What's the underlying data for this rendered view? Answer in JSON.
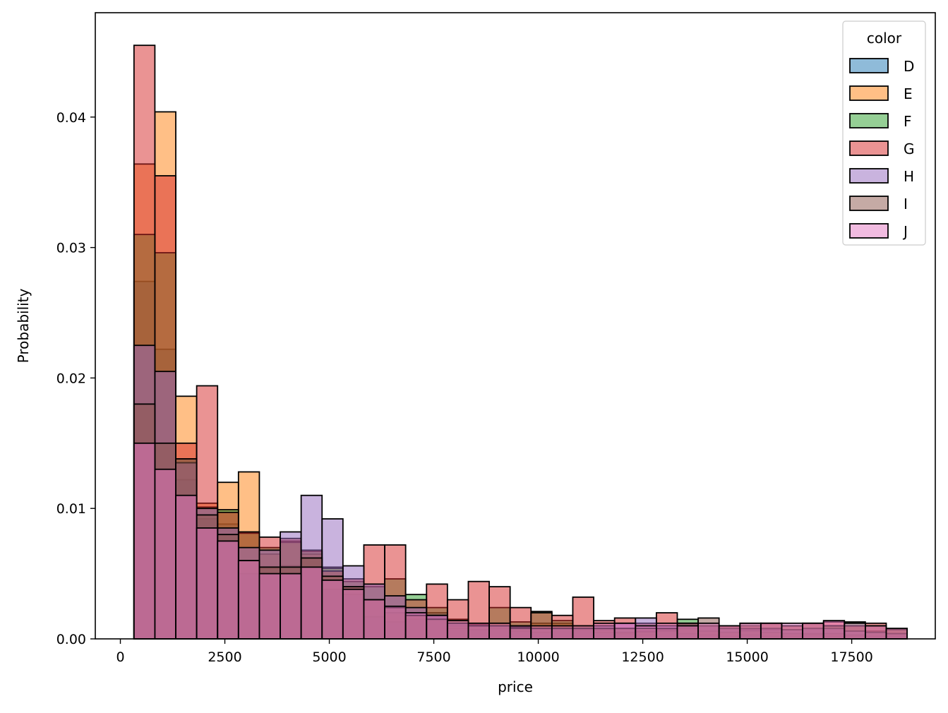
{
  "chart_data": {
    "type": "bar",
    "subtype": "histogram",
    "title": "",
    "xlabel": "price",
    "ylabel": "Probability",
    "xlim": [
      -600,
      19500
    ],
    "ylim": [
      0,
      0.048
    ],
    "xticks": [
      0,
      2500,
      5000,
      7500,
      10000,
      12500,
      15000,
      17500
    ],
    "xtick_labels": [
      "0",
      "2500",
      "5000",
      "7500",
      "10000",
      "12500",
      "15000",
      "17500"
    ],
    "yticks": [
      0,
      0.01,
      0.02,
      0.03,
      0.04
    ],
    "ytick_labels": [
      "0.00",
      "0.01",
      "0.02",
      "0.03",
      "0.04"
    ],
    "bin_start": 326,
    "bin_width": 500,
    "grid": false,
    "legend": {
      "title": "color",
      "placement": "top-right"
    },
    "series": [
      {
        "name": "D",
        "color": "#1f77b4",
        "values": [
          0.0274,
          0.0222,
          0.0122,
          0.0092,
          0.0088,
          0.005,
          0.0054,
          0.0056,
          0.0062,
          0.0038,
          0.0034,
          0.0017,
          0.0013,
          0.0015,
          0.002,
          0.0008,
          0.0007,
          0.0008,
          0.0006,
          0.0005,
          0.001,
          0.0007,
          0.0005,
          0.0004,
          0.0003,
          0.0006,
          0.0004,
          0.0003,
          0.0002,
          0.0003,
          0.0002,
          0.0002,
          0.0003,
          0.0002,
          0.0002,
          0.0002,
          0.0002
        ]
      },
      {
        "name": "E",
        "color": "#ff7f0e",
        "values": [
          0.0364,
          0.0404,
          0.0186,
          0.0104,
          0.012,
          0.0128,
          0.0065,
          0.0075,
          0.0065,
          0.0055,
          0.004,
          0.003,
          0.002,
          0.0018,
          0.0016,
          0.001,
          0.001,
          0.0012,
          0.001,
          0.0012,
          0.0012,
          0.0008,
          0.0007,
          0.0005,
          0.0005,
          0.0006,
          0.0008,
          0.0006,
          0.0005,
          0.0006,
          0.0005,
          0.0004,
          0.0004,
          0.0004,
          0.0003,
          0.0005,
          0.0004
        ]
      },
      {
        "name": "F",
        "color": "#2ca02c",
        "values": [
          0.031,
          0.0296,
          0.0138,
          0.0101,
          0.0099,
          0.0081,
          0.007,
          0.0074,
          0.0067,
          0.0054,
          0.0044,
          0.004,
          0.0046,
          0.0034,
          0.0024,
          0.0015,
          0.0011,
          0.0024,
          0.0013,
          0.0021,
          0.0014,
          0.001,
          0.001,
          0.0008,
          0.0006,
          0.0007,
          0.0015,
          0.001,
          0.0008,
          0.0007,
          0.0007,
          0.0007,
          0.0008,
          0.001,
          0.0013,
          0.0006,
          0.0007
        ]
      },
      {
        "name": "G",
        "color": "#d62728",
        "values": [
          0.0455,
          0.0355,
          0.015,
          0.0194,
          0.0097,
          0.0082,
          0.0078,
          0.0077,
          0.0068,
          0.0052,
          0.0046,
          0.0072,
          0.0072,
          0.003,
          0.0042,
          0.003,
          0.0044,
          0.004,
          0.0024,
          0.002,
          0.0018,
          0.0032,
          0.0014,
          0.0016,
          0.0012,
          0.002,
          0.0012,
          0.001,
          0.001,
          0.001,
          0.0012,
          0.001,
          0.0012,
          0.0013,
          0.001,
          0.0012,
          0.0007
        ]
      },
      {
        "name": "H",
        "color": "#9467bd",
        "values": [
          0.0225,
          0.0205,
          0.0135,
          0.01,
          0.0085,
          0.007,
          0.0068,
          0.0082,
          0.011,
          0.0092,
          0.0056,
          0.0042,
          0.0033,
          0.0024,
          0.0018,
          0.0012,
          0.001,
          0.001,
          0.0009,
          0.0008,
          0.0008,
          0.0008,
          0.001,
          0.0012,
          0.0016,
          0.001,
          0.0012,
          0.001,
          0.0008,
          0.0008,
          0.0008,
          0.0007,
          0.0008,
          0.0008,
          0.0006,
          0.0005,
          0.0004
        ]
      },
      {
        "name": "I",
        "color": "#8c564b",
        "values": [
          0.018,
          0.015,
          0.0138,
          0.0095,
          0.008,
          0.006,
          0.0055,
          0.0055,
          0.0062,
          0.0048,
          0.004,
          0.003,
          0.0024,
          0.0018,
          0.0015,
          0.0012,
          0.001,
          0.001,
          0.0008,
          0.0008,
          0.0008,
          0.0008,
          0.0008,
          0.0008,
          0.0008,
          0.0008,
          0.0012,
          0.0016,
          0.001,
          0.0012,
          0.0012,
          0.001,
          0.0012,
          0.001,
          0.001,
          0.001,
          0.0008
        ]
      },
      {
        "name": "J",
        "color": "#e377c2",
        "values": [
          0.015,
          0.013,
          0.011,
          0.0085,
          0.0075,
          0.006,
          0.005,
          0.005,
          0.0055,
          0.0045,
          0.0038,
          0.003,
          0.0025,
          0.002,
          0.0018,
          0.0014,
          0.0012,
          0.0012,
          0.001,
          0.001,
          0.001,
          0.001,
          0.0012,
          0.0012,
          0.001,
          0.0012,
          0.001,
          0.0012,
          0.001,
          0.0012,
          0.0012,
          0.0012,
          0.0012,
          0.0014,
          0.0012,
          0.001,
          0.0008
        ]
      }
    ]
  }
}
